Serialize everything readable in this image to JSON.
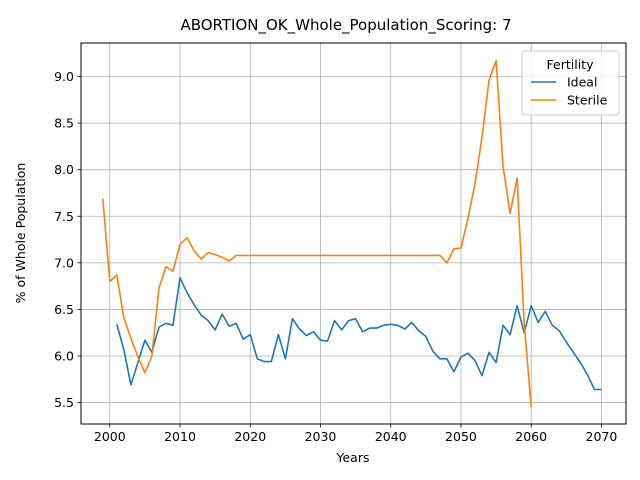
{
  "chart_data": {
    "type": "line",
    "title": "ABORTION_OK_Whole_Population_Scoring: 7",
    "xlabel": "Years",
    "ylabel": "% of Whole Population",
    "xlim": [
      1995.9,
      2073.5
    ],
    "ylim": [
      5.27,
      9.36
    ],
    "xticks": [
      2000,
      2010,
      2020,
      2030,
      2040,
      2050,
      2060,
      2070
    ],
    "yticks": [
      5.5,
      6.0,
      6.5,
      7.0,
      7.5,
      8.0,
      8.5,
      9.0
    ],
    "xtick_labels": [
      "2000",
      "2010",
      "2020",
      "2030",
      "2040",
      "2050",
      "2060",
      "2070"
    ],
    "ytick_labels": [
      "5.5",
      "6.0",
      "6.5",
      "7.0",
      "7.5",
      "8.0",
      "8.5",
      "9.0"
    ],
    "grid": true,
    "legend": {
      "title": "Fertility",
      "placement": "top-right"
    },
    "series": [
      {
        "name": "Ideal",
        "color": "#1f77b4",
        "x": [
          2001,
          2002,
          2003,
          2004,
          2005,
          2006,
          2007,
          2008,
          2009,
          2010,
          2011,
          2012,
          2013,
          2014,
          2015,
          2016,
          2017,
          2018,
          2019,
          2020,
          2021,
          2022,
          2023,
          2024,
          2025,
          2026,
          2027,
          2028,
          2029,
          2030,
          2031,
          2032,
          2033,
          2034,
          2035,
          2036,
          2037,
          2038,
          2039,
          2040,
          2041,
          2042,
          2043,
          2044,
          2045,
          2046,
          2047,
          2048,
          2049,
          2050,
          2051,
          2052,
          2053,
          2054,
          2055,
          2056,
          2057,
          2058,
          2059,
          2060,
          2061,
          2062,
          2063,
          2064,
          2065,
          2066,
          2067,
          2068,
          2069,
          2070
        ],
        "y": [
          6.34,
          6.07,
          5.69,
          5.93,
          6.17,
          6.04,
          6.31,
          6.35,
          6.33,
          6.84,
          6.68,
          6.55,
          6.44,
          6.38,
          6.28,
          6.45,
          6.32,
          6.35,
          6.18,
          6.23,
          5.97,
          5.94,
          5.94,
          6.23,
          5.97,
          6.4,
          6.29,
          6.22,
          6.26,
          6.17,
          6.16,
          6.38,
          6.28,
          6.38,
          6.4,
          6.26,
          6.3,
          6.3,
          6.33,
          6.34,
          6.33,
          6.29,
          6.36,
          6.27,
          6.21,
          6.05,
          5.97,
          5.97,
          5.83,
          5.99,
          6.03,
          5.95,
          5.79,
          6.04,
          5.93,
          6.33,
          6.23,
          6.54,
          6.25,
          6.54,
          6.36,
          6.48,
          6.33,
          6.27,
          6.15,
          6.04,
          5.93,
          5.8,
          5.64,
          5.64
        ]
      },
      {
        "name": "Sterile",
        "color": "#ff7f0e",
        "x": [
          1999,
          2000,
          2001,
          2002,
          2003,
          2004,
          2005,
          2006,
          2007,
          2008,
          2009,
          2010,
          2011,
          2012,
          2013,
          2014,
          2015,
          2016,
          2017,
          2018,
          2019,
          2020,
          2025,
          2030,
          2035,
          2040,
          2045,
          2046,
          2047,
          2048,
          2049,
          2050,
          2051,
          2052,
          2053,
          2054,
          2055,
          2056,
          2057,
          2058,
          2059,
          2060
        ],
        "y": [
          7.69,
          6.8,
          6.87,
          6.41,
          6.19,
          5.99,
          5.82,
          6.0,
          6.73,
          6.96,
          6.91,
          7.2,
          7.27,
          7.13,
          7.04,
          7.11,
          7.09,
          7.06,
          7.02,
          7.08,
          7.08,
          7.08,
          7.08,
          7.08,
          7.08,
          7.08,
          7.08,
          7.08,
          7.08,
          7.0,
          7.15,
          7.16,
          7.48,
          7.85,
          8.35,
          8.96,
          9.17,
          8.03,
          7.53,
          7.91,
          6.35,
          5.45
        ]
      }
    ]
  }
}
